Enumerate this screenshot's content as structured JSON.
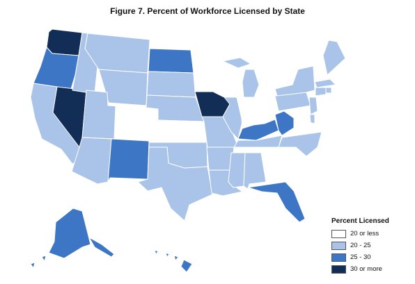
{
  "title": "Figure 7. Percent of Workforce Licensed by State",
  "legend": {
    "title": "Percent Licensed",
    "items": [
      {
        "label": "20 or less",
        "color": "#ffffff"
      },
      {
        "label": "20 - 25",
        "color": "#a9c4e8"
      },
      {
        "label": "25 - 30",
        "color": "#3d76c4"
      },
      {
        "label": "30 or more",
        "color": "#122e57"
      }
    ]
  },
  "state_classes": {
    "WA": 3,
    "OR": 2,
    "CA": 1,
    "NV": 3,
    "ID": 1,
    "MT": 1,
    "WY": 1,
    "UT": 1,
    "AZ": 1,
    "CO": 0,
    "NM": 2,
    "ND": 2,
    "SD": 1,
    "NE": 1,
    "KS": 0,
    "OK": 1,
    "TX": 1,
    "MN": 0,
    "IA": 3,
    "MO": 1,
    "AR": 1,
    "LA": 1,
    "WI": 0,
    "IL": 1,
    "MI": 1,
    "IN": 0,
    "OH": 0,
    "KY": 2,
    "TN": 1,
    "MS": 1,
    "AL": 1,
    "GA": 0,
    "FL": 2,
    "SC": 0,
    "NC": 1,
    "VA": 0,
    "WV": 2,
    "PA": 1,
    "NY": 1,
    "VT": 0,
    "NH": 0,
    "ME": 1,
    "MA": 1,
    "RI": 1,
    "CT": 1,
    "NJ": 1,
    "DE": 1,
    "MD": 0,
    "AK": 2,
    "HI": 2
  }
}
